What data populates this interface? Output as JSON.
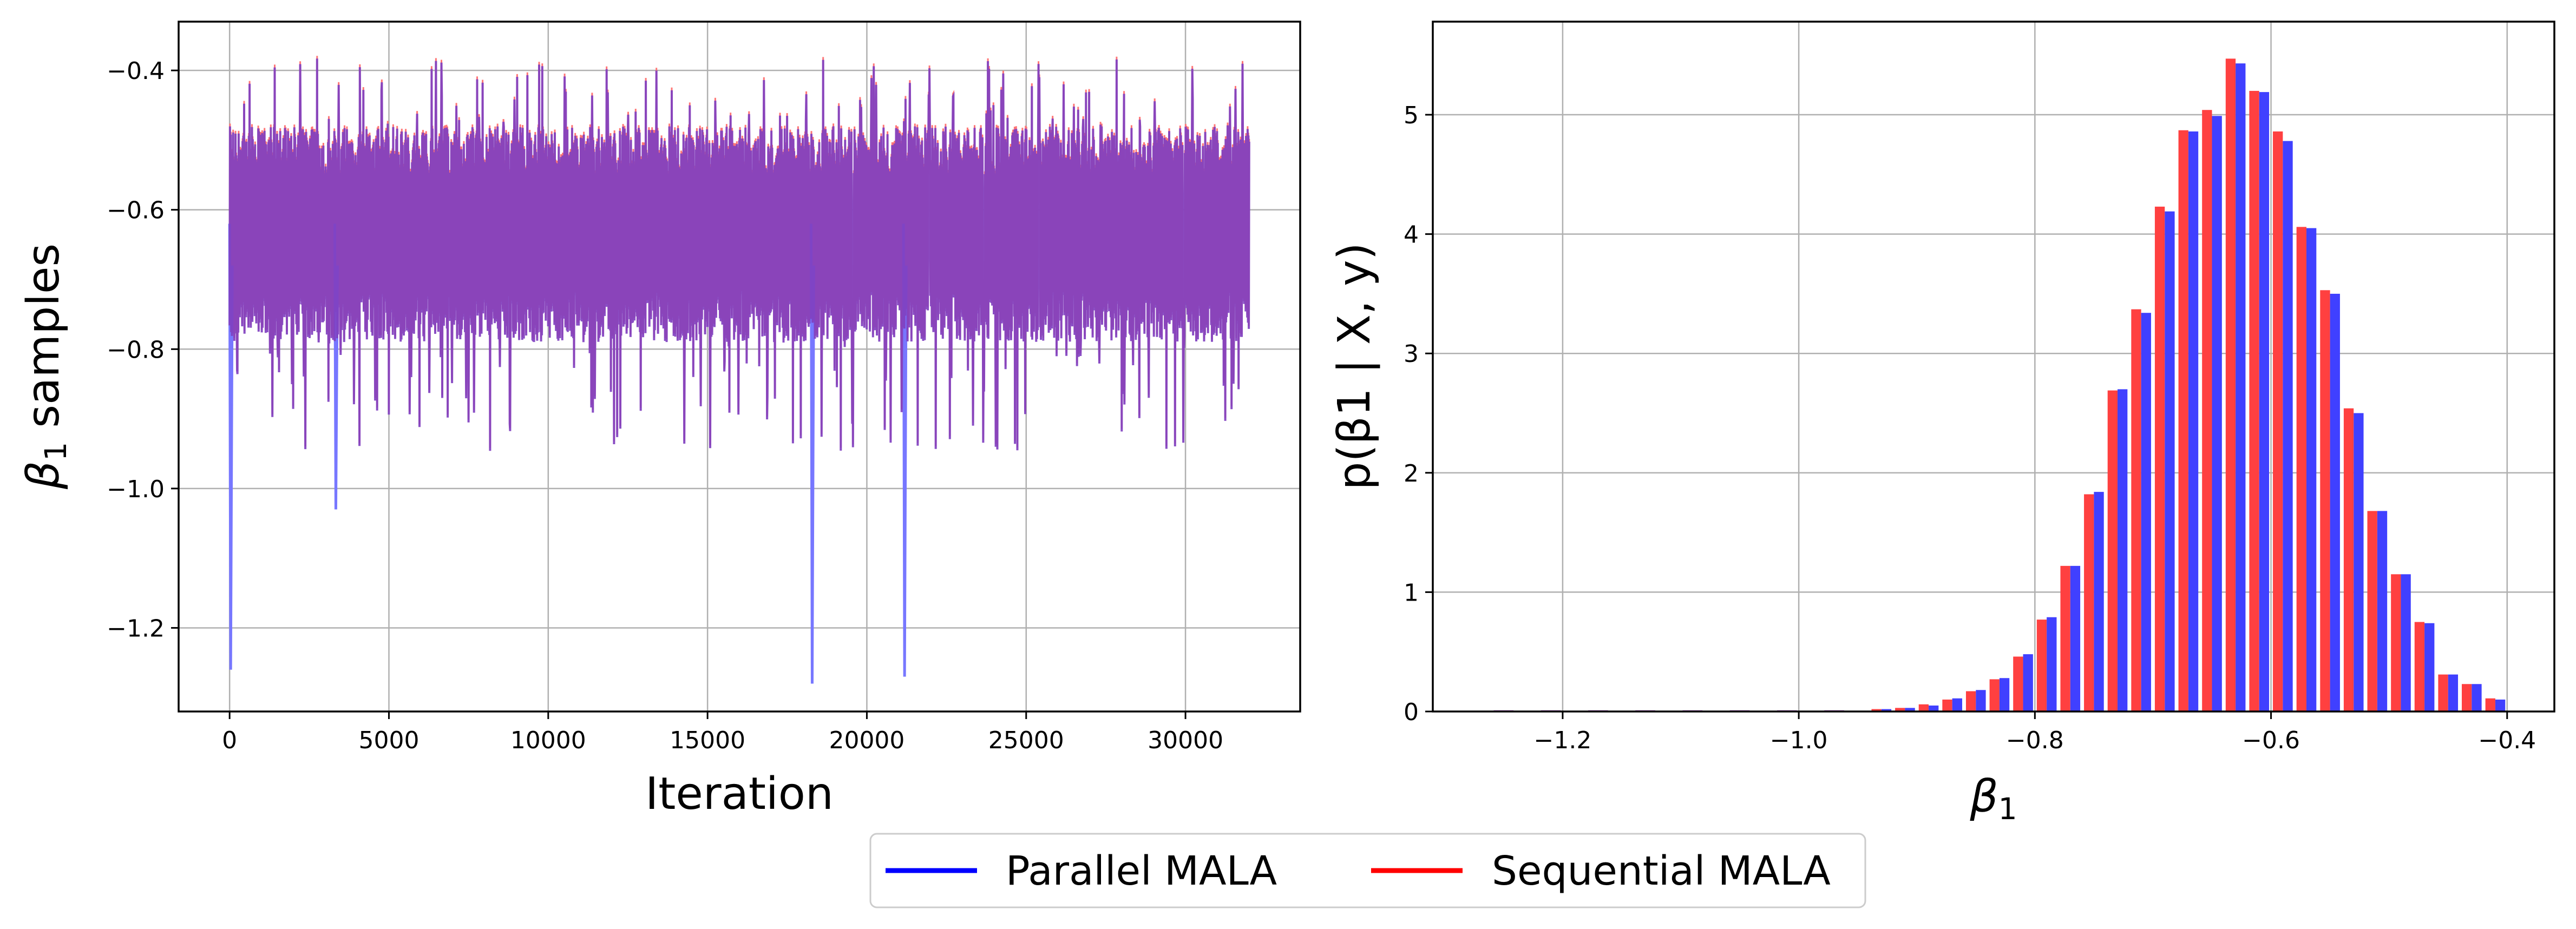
{
  "legend": [
    {
      "label": "Parallel MALA",
      "color": "#0000ff"
    },
    {
      "label": "Sequential MALA",
      "color": "#ff0000"
    }
  ],
  "chart_data": [
    {
      "type": "line",
      "name": "trace-plot",
      "xlabel": "Iteration",
      "ylabel_symbol": "β",
      "ylabel_sub": "1",
      "ylabel_text": " samples",
      "xlim": [
        -1600,
        33600
      ],
      "ylim": [
        -1.32,
        -0.33
      ],
      "xticks": [
        0,
        5000,
        10000,
        15000,
        20000,
        25000,
        30000
      ],
      "xtick_labels": [
        "0",
        "5000",
        "10000",
        "15000",
        "20000",
        "25000",
        "30000"
      ],
      "yticks": [
        -1.2,
        -1.0,
        -0.8,
        -0.6,
        -0.4
      ],
      "ytick_labels": [
        "−1.2",
        "−1.0",
        "−0.8",
        "−0.6",
        "−0.4"
      ],
      "grid": true,
      "series_colors": {
        "parallel": "#7777ff",
        "sequential": "#ff7777",
        "overlap": "#8040c0"
      },
      "band": {
        "x_start": 0,
        "x_end": 32000,
        "typical_low": -0.79,
        "typical_high": -0.48,
        "max_high": -0.38,
        "max_low": -0.95
      },
      "excursions": [
        {
          "series": "Parallel MALA",
          "x": 0,
          "y": -1.26
        },
        {
          "series": "Parallel MALA",
          "x": 3300,
          "y": -1.03
        },
        {
          "series": "Parallel MALA",
          "x": 18250,
          "y": -1.28
        },
        {
          "series": "Parallel MALA",
          "x": 21150,
          "y": -1.27
        }
      ]
    },
    {
      "type": "bar",
      "name": "posterior-histogram",
      "xlabel_symbol": "β",
      "xlabel_sub": "1",
      "ylabel": "p(β1 | X, y)",
      "xlim": [
        -1.31,
        -0.36
      ],
      "ylim": [
        0,
        5.78
      ],
      "xticks": [
        -1.2,
        -1.0,
        -0.8,
        -0.6,
        -0.4
      ],
      "xtick_labels": [
        "−1.2",
        "−1.0",
        "−0.8",
        "−0.6",
        "−0.4"
      ],
      "yticks": [
        0,
        1,
        2,
        3,
        4,
        5
      ],
      "ytick_labels": [
        "0",
        "1",
        "2",
        "3",
        "4",
        "5"
      ],
      "grid": true,
      "bin_width": 0.02,
      "bin_centers": [
        -0.93,
        -0.91,
        -0.89,
        -0.87,
        -0.85,
        -0.83,
        -0.81,
        -0.79,
        -0.77,
        -0.75,
        -0.73,
        -0.71,
        -0.69,
        -0.67,
        -0.65,
        -0.63,
        -0.61,
        -0.59,
        -0.57,
        -0.55,
        -0.53,
        -0.51,
        -0.49,
        -0.47,
        -0.45,
        -0.43,
        -0.41
      ],
      "series": [
        {
          "name": "Sequential MALA",
          "color": "#ff4040",
          "values": [
            0.02,
            0.03,
            0.06,
            0.1,
            0.17,
            0.27,
            0.46,
            0.77,
            1.22,
            1.82,
            2.69,
            3.37,
            4.23,
            4.87,
            5.04,
            5.47,
            5.2,
            4.86,
            4.06,
            3.53,
            2.54,
            1.68,
            1.15,
            0.75,
            0.31,
            0.23,
            0.11
          ]
        },
        {
          "name": "Parallel MALA",
          "color": "#4040ff",
          "values": [
            0.02,
            0.03,
            0.05,
            0.11,
            0.18,
            0.28,
            0.48,
            0.79,
            1.22,
            1.84,
            2.7,
            3.34,
            4.19,
            4.86,
            4.99,
            5.43,
            5.19,
            4.78,
            4.05,
            3.5,
            2.5,
            1.68,
            1.15,
            0.74,
            0.31,
            0.23,
            0.1
          ]
        }
      ],
      "tail_values": [
        0.01,
        0.01,
        0.01,
        0.01,
        0.01,
        0.01,
        0.01,
        0.01
      ]
    }
  ]
}
